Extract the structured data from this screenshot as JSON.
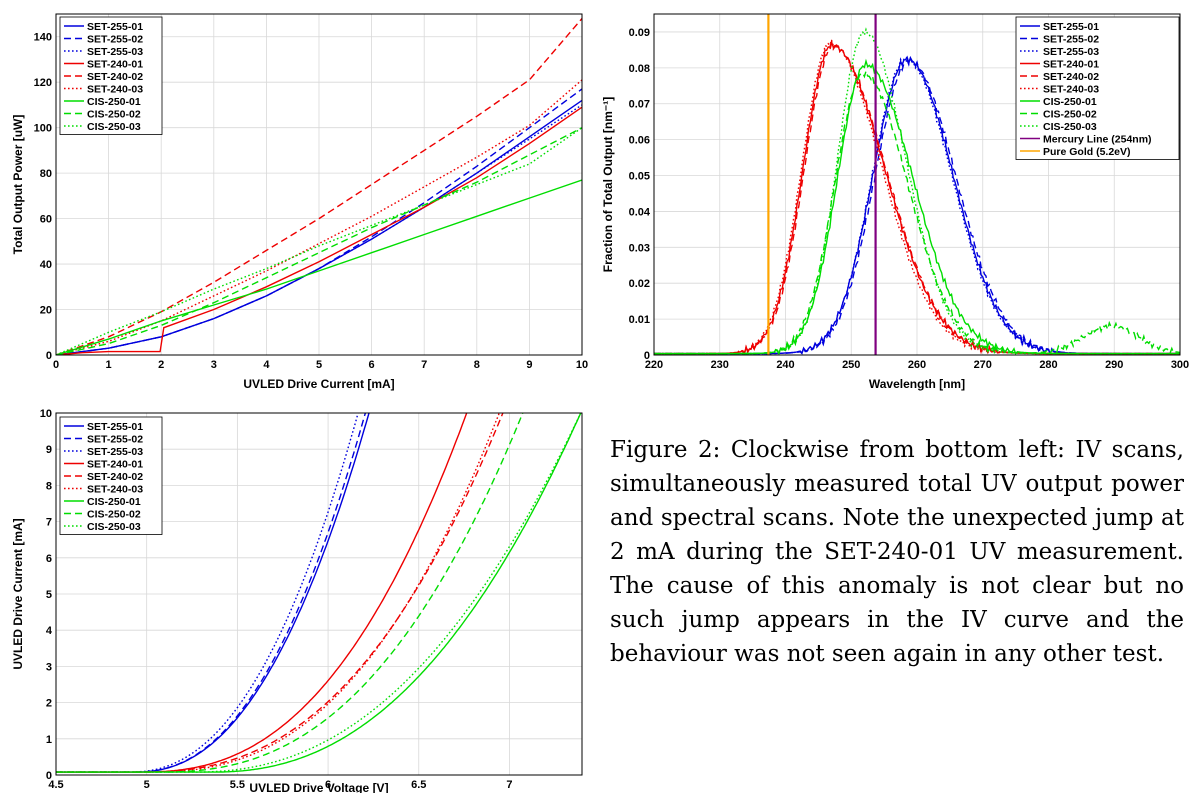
{
  "caption": "Figure 2:  Clockwise from bottom left: IV scans, simultaneously measured total UV output power and spectral scans. Note the unexpected jump at 2 mA during the SET-240-01 UV measurement.  The cause of this anomaly is not clear but no such jump appears in the IV curve and the behaviour was not seen again in any other test.",
  "colors": {
    "blue": "#0000dd",
    "red": "#ee0000",
    "green": "#00dd00",
    "purple": "#800080",
    "orange": "#ffa500"
  },
  "chart_data": [
    {
      "type": "line",
      "xlabel": "UVLED Drive Current  [mA]",
      "ylabel": "Total Output Power  [uW]",
      "xlim": [
        0,
        10
      ],
      "ylim": [
        0,
        150
      ],
      "xticks": [
        "0",
        "1",
        "2",
        "3",
        "4",
        "5",
        "6",
        "7",
        "8",
        "9",
        "10"
      ],
      "yticks": [
        "0",
        "20",
        "40",
        "60",
        "80",
        "100",
        "120",
        "140"
      ],
      "grid": true,
      "legend": "top-left",
      "series": [
        {
          "name": "SET-255-01",
          "color": "blue",
          "dash": "solid",
          "x": [
            0,
            1,
            2,
            3,
            4,
            5,
            6,
            7,
            8,
            9,
            10
          ],
          "y": [
            0,
            3,
            8,
            16,
            26,
            38,
            51,
            65,
            80,
            96,
            112
          ]
        },
        {
          "name": "SET-255-02",
          "color": "blue",
          "dash": "dashed",
          "x": [
            0,
            1,
            2,
            3,
            4,
            5,
            6,
            7,
            8,
            9,
            10
          ],
          "y": [
            0,
            3,
            8,
            16,
            26,
            38,
            52,
            67,
            83,
            100,
            117
          ]
        },
        {
          "name": "SET-255-03",
          "color": "blue",
          "dash": "dotted",
          "x": [
            0,
            1,
            2,
            3,
            4,
            5,
            6,
            7,
            8,
            9,
            10
          ],
          "y": [
            0,
            3,
            8,
            16,
            26,
            38,
            51,
            65,
            80,
            95,
            110
          ]
        },
        {
          "name": "SET-240-01",
          "color": "red",
          "dash": "solid",
          "x": [
            0,
            0.5,
            1,
            1.98,
            2.05,
            3,
            4,
            5,
            6,
            7,
            8,
            9,
            10
          ],
          "y": [
            0,
            1,
            1.5,
            1.5,
            12,
            20,
            30,
            41,
            53,
            65,
            78,
            93,
            109
          ]
        },
        {
          "name": "SET-240-02",
          "color": "red",
          "dash": "dashed",
          "x": [
            0,
            1,
            2,
            3,
            4,
            5,
            6,
            7,
            8,
            9,
            10
          ],
          "y": [
            0,
            8,
            19,
            32,
            46,
            60,
            75,
            90,
            105,
            121,
            148
          ]
        },
        {
          "name": "SET-240-03",
          "color": "red",
          "dash": "dotted",
          "x": [
            0,
            1,
            2,
            3,
            4,
            5,
            6,
            7,
            8,
            9,
            10
          ],
          "y": [
            0,
            6,
            15,
            26,
            37,
            49,
            61,
            74,
            87,
            101,
            121
          ]
        },
        {
          "name": "CIS-250-01",
          "color": "green",
          "dash": "solid",
          "x": [
            0,
            1,
            2,
            3,
            4,
            5,
            6,
            7,
            8,
            9,
            10
          ],
          "y": [
            0,
            7,
            15,
            22,
            29,
            37,
            45,
            53,
            61,
            69,
            77
          ]
        },
        {
          "name": "CIS-250-02",
          "color": "green",
          "dash": "dashed",
          "x": [
            0,
            1,
            2,
            3,
            4,
            5,
            6,
            7,
            8,
            9,
            10
          ],
          "y": [
            0,
            5,
            13,
            23,
            34,
            45,
            56,
            66,
            76,
            88,
            100
          ]
        },
        {
          "name": "CIS-250-03",
          "color": "green",
          "dash": "dotted",
          "x": [
            0,
            1,
            2,
            3,
            4,
            5,
            6,
            7,
            8,
            9,
            10
          ],
          "y": [
            0,
            10,
            19,
            29,
            38,
            48,
            57,
            66,
            75,
            84,
            100
          ]
        }
      ]
    },
    {
      "type": "line",
      "xlabel": "Wavelength  [nm]",
      "ylabel": "Fraction of Total Output  [nm⁻¹]",
      "xlim": [
        220,
        300
      ],
      "ylim": [
        0,
        0.095
      ],
      "xticks": [
        "220",
        "230",
        "240",
        "250",
        "260",
        "270",
        "280",
        "290",
        "300"
      ],
      "yticks": [
        "0",
        "0.01",
        "0.02",
        "0.03",
        "0.04",
        "0.05",
        "0.06",
        "0.07",
        "0.08",
        "0.09"
      ],
      "grid": true,
      "legend": "top-right",
      "series": [
        {
          "name": "SET-255-01",
          "color": "blue",
          "dash": "solid",
          "peak": 258.5,
          "amp": 0.082,
          "wl": 5.2,
          "wr": 7.0
        },
        {
          "name": "SET-255-02",
          "color": "blue",
          "dash": "dashed",
          "peak": 258.8,
          "amp": 0.0815,
          "wl": 5.2,
          "wr": 7.1
        },
        {
          "name": "SET-255-03",
          "color": "blue",
          "dash": "dotted",
          "peak": 258.3,
          "amp": 0.082,
          "wl": 5.1,
          "wr": 7.0
        },
        {
          "name": "SET-240-01",
          "color": "red",
          "dash": "solid",
          "peak": 247.0,
          "amp": 0.086,
          "wl": 4.3,
          "wr": 8.0
        },
        {
          "name": "SET-240-02",
          "color": "red",
          "dash": "dashed",
          "peak": 247.2,
          "amp": 0.0855,
          "wl": 4.3,
          "wr": 8.0
        },
        {
          "name": "SET-240-03",
          "color": "red",
          "dash": "dotted",
          "peak": 246.8,
          "amp": 0.0865,
          "wl": 4.3,
          "wr": 7.8
        },
        {
          "name": "CIS-250-01",
          "color": "green",
          "dash": "solid",
          "peak": 252.2,
          "amp": 0.0805,
          "wl": 4.3,
          "wr": 7.2
        },
        {
          "name": "CIS-250-02",
          "color": "green",
          "dash": "dashed",
          "peak": 251.8,
          "amp": 0.078,
          "wl": 4.3,
          "wr": 6.8,
          "amp2": 0.0077,
          "peak2": 289.5,
          "w2": 4.2
        },
        {
          "name": "CIS-250-03",
          "color": "green",
          "dash": "dotted",
          "peak": 252.0,
          "amp": 0.0895,
          "wl": 4.1,
          "wr": 6.3
        },
        {
          "name": "Mercury Line (254nm)",
          "color": "purple",
          "dash": "solid",
          "vline": 253.7
        },
        {
          "name": "Pure Gold (5.2eV)",
          "color": "orange",
          "dash": "solid",
          "vline": 237.4
        }
      ]
    },
    {
      "type": "line",
      "xlabel": "UVLED Drive Voltage  [V]",
      "ylabel": "UVLED Drive Current  [mA]",
      "xlim": [
        4.5,
        7.4
      ],
      "ylim": [
        0,
        10
      ],
      "xticks": [
        "4.5",
        "5",
        "5.5",
        "6",
        "6.5",
        "7"
      ],
      "yticks": [
        "0",
        "1",
        "2",
        "3",
        "4",
        "5",
        "6",
        "7",
        "8",
        "9",
        "10"
      ],
      "grid": true,
      "legend": "top-left",
      "series": [
        {
          "name": "SET-255-01",
          "color": "blue",
          "dash": "solid",
          "v0": 4.93,
          "v10": 6.23,
          "p": 2.3
        },
        {
          "name": "SET-255-02",
          "color": "blue",
          "dash": "dashed",
          "v0": 4.93,
          "v10": 6.21,
          "p": 2.3
        },
        {
          "name": "SET-255-03",
          "color": "blue",
          "dash": "dotted",
          "v0": 4.9,
          "v10": 6.17,
          "p": 2.3
        },
        {
          "name": "SET-240-01",
          "color": "red",
          "dash": "solid",
          "v0": 4.95,
          "v10": 6.77,
          "p": 2.5
        },
        {
          "name": "SET-240-02",
          "color": "red",
          "dash": "dashed",
          "v0": 4.95,
          "v10": 6.97,
          "p": 2.5
        },
        {
          "name": "SET-240-03",
          "color": "red",
          "dash": "dotted",
          "v0": 5.0,
          "v10": 6.95,
          "p": 2.5
        },
        {
          "name": "CIS-250-01",
          "color": "green",
          "dash": "solid",
          "v0": 5.35,
          "v10": 7.4,
          "p": 2.3
        },
        {
          "name": "CIS-250-02",
          "color": "green",
          "dash": "dashed",
          "v0": 5.05,
          "v10": 7.08,
          "p": 2.5
        },
        {
          "name": "CIS-250-03",
          "color": "green",
          "dash": "dotted",
          "v0": 5.25,
          "v10": 7.4,
          "p": 2.3
        }
      ]
    }
  ]
}
